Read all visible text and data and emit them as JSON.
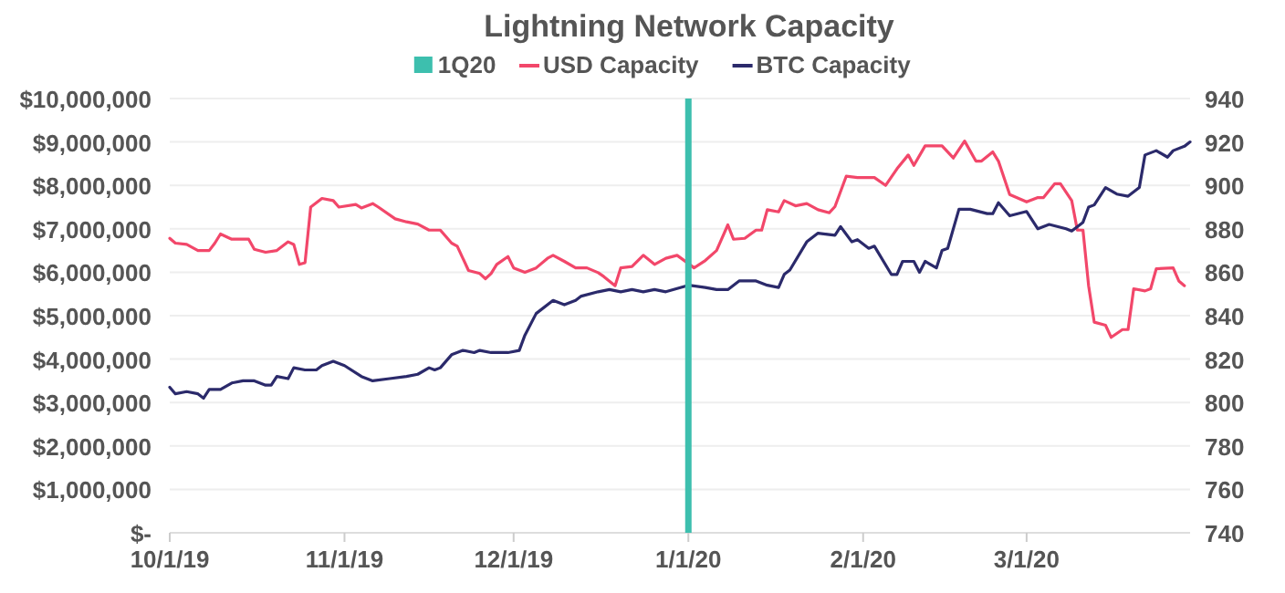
{
  "chart_data": {
    "type": "line",
    "title": "Lightning Network Capacity",
    "legend": "top",
    "grid": "y",
    "xlim": [
      "2019-10-01",
      "2020-03-30"
    ],
    "xticks": [
      {
        "value": "2019-10-01",
        "label": "10/1/19"
      },
      {
        "value": "2019-11-01",
        "label": "11/1/19"
      },
      {
        "value": "2019-12-01",
        "label": "12/1/19"
      },
      {
        "value": "2020-01-01",
        "label": "1/1/20"
      },
      {
        "value": "2020-02-01",
        "label": "2/1/20"
      },
      {
        "value": "2020-03-01",
        "label": "3/1/20"
      }
    ],
    "ylim": [
      0,
      10000000
    ],
    "yticks": [
      {
        "value": 0,
        "label": "$-"
      },
      {
        "value": 1000000,
        "label": "$1,000,000"
      },
      {
        "value": 2000000,
        "label": "$2,000,000"
      },
      {
        "value": 3000000,
        "label": "$3,000,000"
      },
      {
        "value": 4000000,
        "label": "$4,000,000"
      },
      {
        "value": 5000000,
        "label": "$5,000,000"
      },
      {
        "value": 6000000,
        "label": "$6,000,000"
      },
      {
        "value": 7000000,
        "label": "$7,000,000"
      },
      {
        "value": 8000000,
        "label": "$8,000,000"
      },
      {
        "value": 9000000,
        "label": "$9,000,000"
      },
      {
        "value": 10000000,
        "label": "$10,000,000"
      }
    ],
    "y2lim": [
      740,
      940
    ],
    "y2ticks": [
      740,
      760,
      780,
      800,
      820,
      840,
      860,
      880,
      900,
      920,
      940
    ],
    "ref_lines": [
      {
        "axis": "x",
        "value": "2020-01-01",
        "label": "1Q20",
        "color": "#3dbfae"
      }
    ],
    "series": [
      {
        "name": "USD Capacity",
        "color": "#f2476a",
        "x": [
          "2019-10-01",
          "2019-10-02",
          "2019-10-04",
          "2019-10-06",
          "2019-10-08",
          "2019-10-09",
          "2019-10-10",
          "2019-10-12",
          "2019-10-15",
          "2019-10-16",
          "2019-10-18",
          "2019-10-20",
          "2019-10-22",
          "2019-10-23",
          "2019-10-24",
          "2019-10-25",
          "2019-10-26",
          "2019-10-28",
          "2019-10-30",
          "2019-10-31",
          "2019-11-03",
          "2019-11-04",
          "2019-11-06",
          "2019-11-07",
          "2019-11-10",
          "2019-11-12",
          "2019-11-14",
          "2019-11-16",
          "2019-11-18",
          "2019-11-20",
          "2019-11-21",
          "2019-11-23",
          "2019-11-25",
          "2019-11-26",
          "2019-11-27",
          "2019-11-28",
          "2019-11-30",
          "2019-12-01",
          "2019-12-03",
          "2019-12-05",
          "2019-12-07",
          "2019-12-08",
          "2019-12-10",
          "2019-12-12",
          "2019-12-14",
          "2019-12-16",
          "2019-12-17",
          "2019-12-19",
          "2019-12-20",
          "2019-12-22",
          "2019-12-24",
          "2019-12-26",
          "2019-12-28",
          "2019-12-30",
          "2020-01-01",
          "2020-01-02",
          "2020-01-04",
          "2020-01-06",
          "2020-01-08",
          "2020-01-09",
          "2020-01-11",
          "2020-01-13",
          "2020-01-14",
          "2020-01-15",
          "2020-01-17",
          "2020-01-18",
          "2020-01-20",
          "2020-01-22",
          "2020-01-24",
          "2020-01-26",
          "2020-01-27",
          "2020-01-29",
          "2020-01-31",
          "2020-02-03",
          "2020-02-05",
          "2020-02-07",
          "2020-02-09",
          "2020-02-10",
          "2020-02-12",
          "2020-02-15",
          "2020-02-17",
          "2020-02-19",
          "2020-02-21",
          "2020-02-22",
          "2020-02-24",
          "2020-02-25",
          "2020-02-27",
          "2020-03-01",
          "2020-03-03",
          "2020-03-04",
          "2020-03-06",
          "2020-03-07",
          "2020-03-09",
          "2020-03-10",
          "2020-03-11",
          "2020-03-12",
          "2020-03-13",
          "2020-03-15",
          "2020-03-16",
          "2020-03-18",
          "2020-03-19",
          "2020-03-20",
          "2020-03-22",
          "2020-03-23",
          "2020-03-24",
          "2020-03-27",
          "2020-03-28",
          "2020-03-29"
        ],
        "values": [
          6780000,
          6670000,
          6640000,
          6500000,
          6500000,
          6670000,
          6880000,
          6760000,
          6760000,
          6530000,
          6460000,
          6500000,
          6700000,
          6640000,
          6180000,
          6220000,
          7500000,
          7700000,
          7650000,
          7500000,
          7560000,
          7480000,
          7580000,
          7500000,
          7230000,
          7160000,
          7110000,
          6970000,
          6970000,
          6670000,
          6600000,
          6040000,
          5970000,
          5850000,
          5970000,
          6180000,
          6360000,
          6100000,
          6000000,
          6100000,
          6320000,
          6390000,
          6250000,
          6100000,
          6100000,
          5990000,
          5900000,
          5690000,
          6100000,
          6130000,
          6390000,
          6180000,
          6320000,
          6390000,
          6200000,
          6100000,
          6270000,
          6500000,
          7090000,
          6760000,
          6780000,
          6970000,
          6970000,
          7440000,
          7390000,
          7650000,
          7530000,
          7580000,
          7440000,
          7370000,
          7510000,
          8210000,
          8180000,
          8180000,
          8000000,
          8380000,
          8700000,
          8460000,
          8910000,
          8910000,
          8630000,
          9020000,
          8560000,
          8560000,
          8770000,
          8560000,
          7790000,
          7620000,
          7720000,
          7720000,
          8040000,
          8040000,
          7650000,
          6970000,
          6970000,
          5690000,
          4850000,
          4780000,
          4500000,
          4680000,
          4680000,
          5620000,
          5570000,
          5620000,
          6080000,
          6100000,
          5800000,
          5690000
        ]
      },
      {
        "name": "BTC Capacity",
        "color": "#2b2a6b",
        "axis": "y2",
        "x": [
          "2019-10-01",
          "2019-10-02",
          "2019-10-04",
          "2019-10-06",
          "2019-10-07",
          "2019-10-08",
          "2019-10-10",
          "2019-10-12",
          "2019-10-14",
          "2019-10-16",
          "2019-10-18",
          "2019-10-19",
          "2019-10-20",
          "2019-10-22",
          "2019-10-23",
          "2019-10-25",
          "2019-10-27",
          "2019-10-28",
          "2019-10-30",
          "2019-11-01",
          "2019-11-04",
          "2019-11-06",
          "2019-11-09",
          "2019-11-12",
          "2019-11-14",
          "2019-11-16",
          "2019-11-17",
          "2019-11-18",
          "2019-11-20",
          "2019-11-22",
          "2019-11-24",
          "2019-11-25",
          "2019-11-27",
          "2019-11-30",
          "2019-12-02",
          "2019-12-03",
          "2019-12-05",
          "2019-12-08",
          "2019-12-10",
          "2019-12-12",
          "2019-12-13",
          "2019-12-16",
          "2019-12-18",
          "2019-12-20",
          "2019-12-22",
          "2019-12-24",
          "2019-12-26",
          "2019-12-28",
          "2020-01-01",
          "2020-01-04",
          "2020-01-06",
          "2020-01-08",
          "2020-01-10",
          "2020-01-13",
          "2020-01-15",
          "2020-01-17",
          "2020-01-18",
          "2020-01-19",
          "2020-01-22",
          "2020-01-24",
          "2020-01-27",
          "2020-01-28",
          "2020-01-30",
          "2020-01-31",
          "2020-02-02",
          "2020-02-03",
          "2020-02-06",
          "2020-02-07",
          "2020-02-08",
          "2020-02-10",
          "2020-02-11",
          "2020-02-12",
          "2020-02-14",
          "2020-02-15",
          "2020-02-16",
          "2020-02-18",
          "2020-02-20",
          "2020-02-23",
          "2020-02-24",
          "2020-02-25",
          "2020-02-27",
          "2020-03-01",
          "2020-03-03",
          "2020-03-05",
          "2020-03-08",
          "2020-03-09",
          "2020-03-11",
          "2020-03-12",
          "2020-03-13",
          "2020-03-15",
          "2020-03-17",
          "2020-03-19",
          "2020-03-21",
          "2020-03-22",
          "2020-03-24",
          "2020-03-26",
          "2020-03-27",
          "2020-03-29",
          "2020-03-30"
        ],
        "values": [
          807,
          804,
          805,
          804,
          802,
          806,
          806,
          809,
          810,
          810,
          808,
          808,
          812,
          811,
          816,
          815,
          815,
          817,
          819,
          817,
          812,
          810,
          811,
          812,
          813,
          816,
          815,
          816,
          822,
          824,
          823,
          824,
          823,
          823,
          824,
          831,
          841,
          847,
          845,
          847,
          849,
          851,
          852,
          851,
          852,
          851,
          852,
          851,
          854,
          853,
          852,
          852,
          856,
          856,
          854,
          853,
          859,
          861,
          874,
          878,
          877,
          881,
          874,
          875,
          871,
          872,
          859,
          859,
          865,
          865,
          860,
          865,
          862,
          870,
          871,
          889,
          889,
          887,
          887,
          892,
          886,
          888,
          880,
          882,
          880,
          879,
          883,
          890,
          891,
          899,
          896,
          895,
          899,
          914,
          916,
          913,
          916,
          918,
          920
        ]
      }
    ]
  }
}
